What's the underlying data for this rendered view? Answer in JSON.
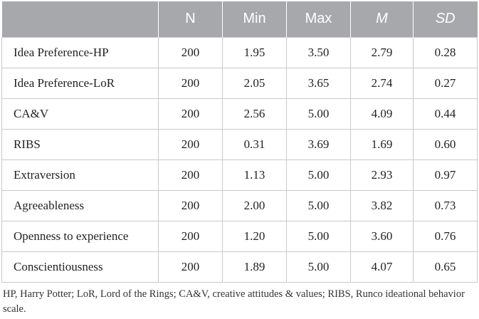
{
  "table": {
    "headers": [
      "",
      "N",
      "Min",
      "Max",
      "M",
      "SD"
    ],
    "rows": [
      {
        "label": "Idea Preference-HP",
        "n": "200",
        "min": "1.95",
        "max": "3.50",
        "m": "2.79",
        "sd": "0.28"
      },
      {
        "label": "Idea Preference-LoR",
        "n": "200",
        "min": "2.05",
        "max": "3.65",
        "m": "2.74",
        "sd": "0.27"
      },
      {
        "label": "CA&V",
        "n": "200",
        "min": "2.56",
        "max": "5.00",
        "m": "4.09",
        "sd": "0.44"
      },
      {
        "label": "RIBS",
        "n": "200",
        "min": "0.31",
        "max": "3.69",
        "m": "1.69",
        "sd": "0.60"
      },
      {
        "label": "Extraversion",
        "n": "200",
        "min": "1.13",
        "max": "5.00",
        "m": "2.93",
        "sd": "0.97"
      },
      {
        "label": "Agreeableness",
        "n": "200",
        "min": "2.00",
        "max": "5.00",
        "m": "3.82",
        "sd": "0.73"
      },
      {
        "label": "Openness to experience",
        "n": "200",
        "min": "1.20",
        "max": "5.00",
        "m": "3.60",
        "sd": "0.76"
      },
      {
        "label": "Conscientiousness",
        "n": "200",
        "min": "1.89",
        "max": "5.00",
        "m": "4.07",
        "sd": "0.65"
      }
    ]
  },
  "footnote": "HP, Harry Potter; LoR, Lord of the Rings; CA&V, creative attitudes & values; RIBS, Runco ideational behavior scale."
}
